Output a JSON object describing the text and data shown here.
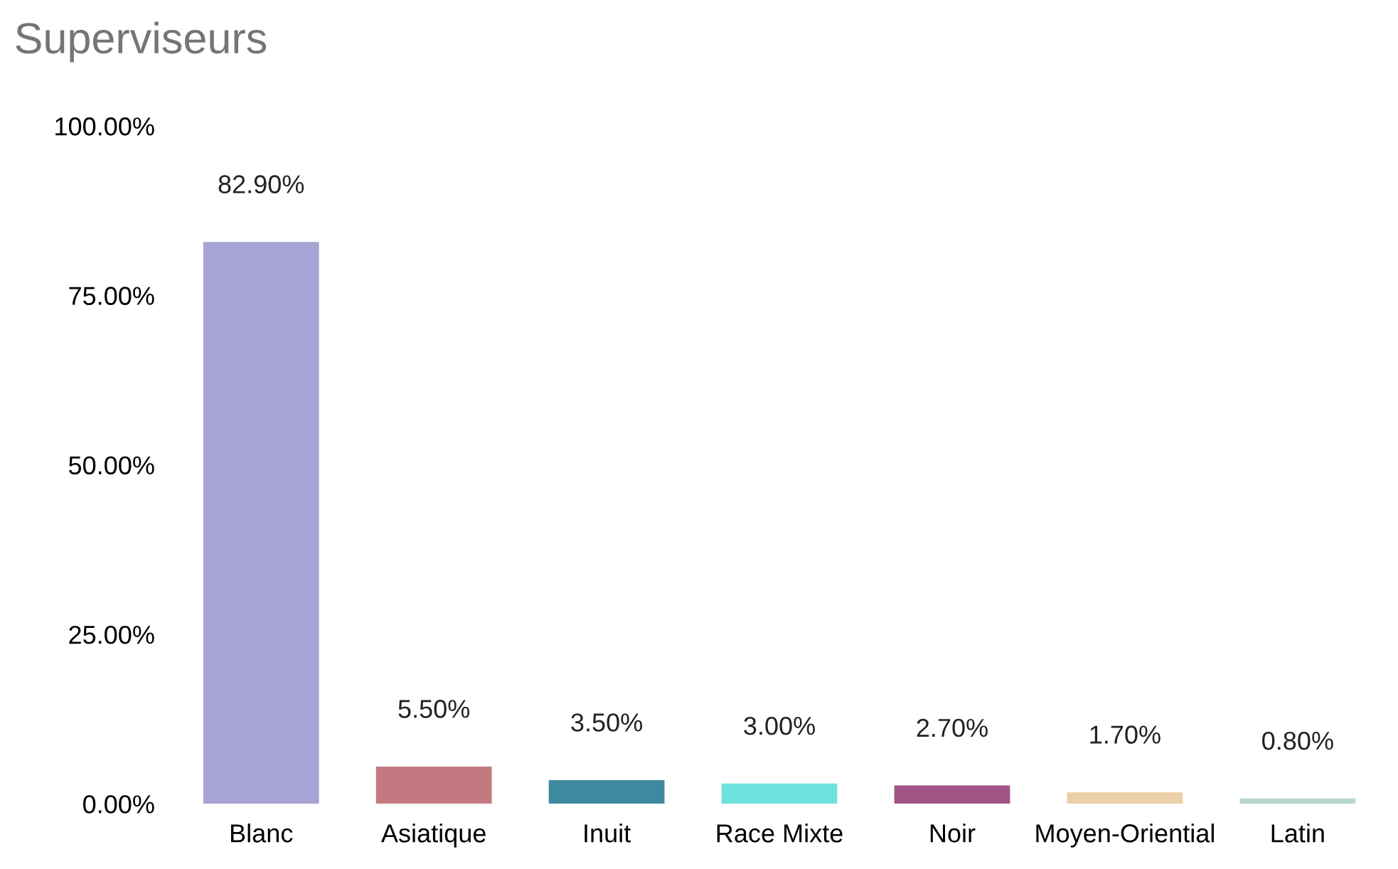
{
  "chart_data": {
    "type": "bar",
    "title": "Superviseurs",
    "categories": [
      "Blanc",
      "Asiatique",
      "Inuit",
      "Race Mixte",
      "Noir",
      "Moyen-Oriential",
      "Latin"
    ],
    "values": [
      82.9,
      5.5,
      3.5,
      3.0,
      2.7,
      1.7,
      0.8
    ],
    "colors": [
      "#a7a3d4",
      "#c27a80",
      "#3d8aa0",
      "#6ee0dd",
      "#a05585",
      "#ebcfa6",
      "#b5d6cf"
    ],
    "value_labels": [
      "82.90%",
      "5.50%",
      "3.50%",
      "3.00%",
      "2.70%",
      "1.70%",
      "0.80%"
    ],
    "ylim": [
      0,
      100
    ],
    "yticks": [
      {
        "value": 0,
        "label": "0.00%"
      },
      {
        "value": 25,
        "label": "25.00%"
      },
      {
        "value": 50,
        "label": "50.00%"
      },
      {
        "value": 75,
        "label": "75.00%"
      },
      {
        "value": 100,
        "label": "100.00%"
      }
    ],
    "grid": false,
    "legend": false
  }
}
